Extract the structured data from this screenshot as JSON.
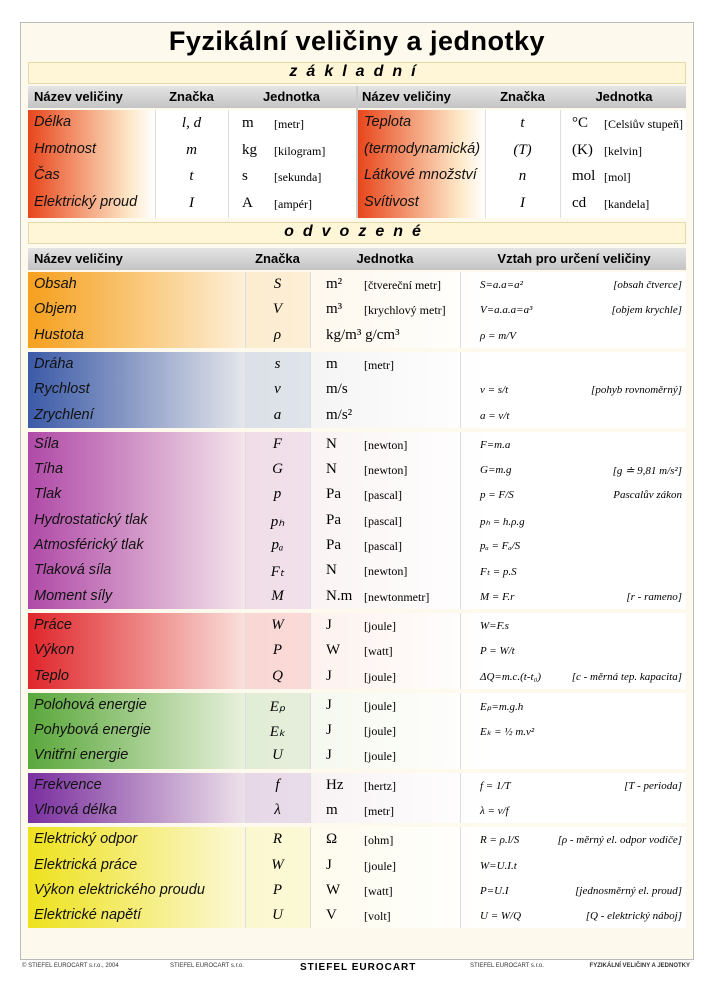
{
  "title": "Fyzikální veličiny a jednotky",
  "basic": {
    "label": "základní",
    "color": "#e8461c",
    "headers": [
      "Název veličiny",
      "Značka",
      "Jednotka",
      "Název veličiny",
      "Značka",
      "Jednotka"
    ],
    "left": [
      {
        "name": "Délka",
        "symbol": "l, d",
        "unit": "m",
        "unit_name": "[metr]"
      },
      {
        "name": "Hmotnost",
        "symbol": "m",
        "unit": "kg",
        "unit_name": "[kilogram]"
      },
      {
        "name": "Čas",
        "symbol": "t",
        "unit": "s",
        "unit_name": "[sekunda]"
      },
      {
        "name": "Elektrický proud",
        "symbol": "I",
        "unit": "A",
        "unit_name": "[ampér]"
      }
    ],
    "right": [
      {
        "name": "Teplota",
        "symbol": "t",
        "unit": "°C",
        "unit_name": "[Celsiův stupeň]"
      },
      {
        "name": "(termodynamická)",
        "symbol": "(T)",
        "unit": "(K)",
        "unit_name": "[kelvin]"
      },
      {
        "name": "Látkové množství",
        "symbol": "n",
        "unit": "mol",
        "unit_name": "[mol]"
      },
      {
        "name": "Svítivost",
        "symbol": "I",
        "unit": "cd",
        "unit_name": "[kandela]"
      }
    ]
  },
  "derived": {
    "label": "odvozené",
    "headers": [
      "Název veličiny",
      "Značka",
      "Jednotka",
      "Vztah pro určení veličiny"
    ],
    "groups": [
      {
        "color": "#f6a01e",
        "rows": [
          {
            "name": "Obsah",
            "symbol": "S",
            "unit": "m²",
            "unit_name": "[čtvereční metr]",
            "formula": "S=a.a=a²",
            "note": "[obsah čtverce]"
          },
          {
            "name": "Objem",
            "symbol": "V",
            "unit": "m³",
            "unit_name": "[krychlový metr]",
            "formula": "V=a.a.a=a³",
            "note": "[objem krychle]"
          },
          {
            "name": "Hustota",
            "symbol": "ρ",
            "unit": "kg/m³   g/cm³",
            "formula": "ρ = m/V"
          }
        ]
      },
      {
        "color": "#3b5aa8",
        "rows": [
          {
            "name": "Dráha",
            "symbol": "s",
            "unit": "m",
            "unit_name": "[metr]"
          },
          {
            "name": "Rychlost",
            "symbol": "v",
            "unit": "m/s",
            "formula": "v = s/t",
            "note": "[pohyb rovnoměrný]"
          },
          {
            "name": "Zrychlení",
            "symbol": "a",
            "unit": "m/s²",
            "formula": "a = v/t"
          }
        ]
      },
      {
        "color": "#b04aa8",
        "rows": [
          {
            "name": "Síla",
            "symbol": "F",
            "unit": "N",
            "unit_name": "[newton]",
            "formula": "F=m.a"
          },
          {
            "name": "Tíha",
            "symbol": "G",
            "unit": "N",
            "unit_name": "[newton]",
            "formula": "G=m.g",
            "note": "[g ≐ 9,81 m/s²]"
          },
          {
            "name": "Tlak",
            "symbol": "p",
            "unit": "Pa",
            "unit_name": "[pascal]",
            "formula": "p = F/S",
            "note": "Pascalův zákon"
          },
          {
            "name": "Hydrostatický tlak",
            "symbol": "pₕ",
            "unit": "Pa",
            "unit_name": "[pascal]",
            "formula": "pₕ = h.ρ.g"
          },
          {
            "name": "Atmosférický tlak",
            "symbol": "pₐ",
            "unit": "Pa",
            "unit_name": "[pascal]",
            "formula": "pₐ = Fₐ/S"
          },
          {
            "name": "Tlaková síla",
            "symbol": "Fₜ",
            "unit": "N",
            "unit_name": "[newton]",
            "formula": "Fₜ = p.S"
          },
          {
            "name": "Moment síly",
            "symbol": "M",
            "unit": "N.m",
            "unit_name": "[newtonmetr]",
            "formula": "M = F.r",
            "note": "[r - rameno]"
          }
        ]
      },
      {
        "color": "#e0262c",
        "rows": [
          {
            "name": "Práce",
            "symbol": "W",
            "unit": "J",
            "unit_name": "[joule]",
            "formula": "W=F.s"
          },
          {
            "name": "Výkon",
            "symbol": "P",
            "unit": "W",
            "unit_name": "[watt]",
            "formula": "P = W/t"
          },
          {
            "name": "Teplo",
            "symbol": "Q",
            "unit": "J",
            "unit_name": "[joule]",
            "formula": "ΔQ=m.c.(t-t₀)",
            "note": "[c - měrná tep. kapacita]"
          }
        ]
      },
      {
        "color": "#5aa83c",
        "rows": [
          {
            "name": "Polohová energie",
            "symbol": "Eₚ",
            "unit": "J",
            "unit_name": "[joule]",
            "formula": "Eₚ=m.g.h"
          },
          {
            "name": "Pohybová energie",
            "symbol": "Eₖ",
            "unit": "J",
            "unit_name": "[joule]",
            "formula": "Eₖ = ½ m.v²"
          },
          {
            "name": "Vnitřní energie",
            "symbol": "U",
            "unit": "J",
            "unit_name": "[joule]"
          }
        ]
      },
      {
        "color": "#7a2fa0",
        "rows": [
          {
            "name": "Frekvence",
            "symbol": "f",
            "unit": "Hz",
            "unit_name": "[hertz]",
            "formula": "f = 1/T",
            "note": "[T - perioda]"
          },
          {
            "name": "Vlnová délka",
            "symbol": "λ",
            "unit": "m",
            "unit_name": "[metr]",
            "formula": "λ = v/f"
          }
        ]
      },
      {
        "color": "#eee21e",
        "rows": [
          {
            "name": "Elektrický odpor",
            "symbol": "R",
            "unit": "Ω",
            "unit_name": "[ohm]",
            "formula": "R = ρ.l/S",
            "note": "[ρ - měrný el. odpor vodiče]"
          },
          {
            "name": "Elektrická práce",
            "symbol": "W",
            "unit": "J",
            "unit_name": "[joule]",
            "formula": "W=U.I.t"
          },
          {
            "name": "Výkon elektrického proudu",
            "symbol": "P",
            "unit": "W",
            "unit_name": "[watt]",
            "formula": "P=U.I",
            "note": "[jednosměrný el. proud]"
          },
          {
            "name": "Elektrické napětí",
            "symbol": "U",
            "unit": "V",
            "unit_name": "[volt]",
            "formula": "U = W/Q",
            "note": "[Q - elektrický náboj]"
          }
        ]
      }
    ]
  },
  "footer": {
    "left": "© STIEFEL EUROCART s.r.o., 2004",
    "center_left": "STIEFEL EUROCART s.r.o.",
    "logo": "STIEFEL EUROCART",
    "center_right": "STIEFEL EUROCART s.r.o.",
    "right": "FYZIKÁLNÍ VELIČINY A JEDNOTKY"
  }
}
